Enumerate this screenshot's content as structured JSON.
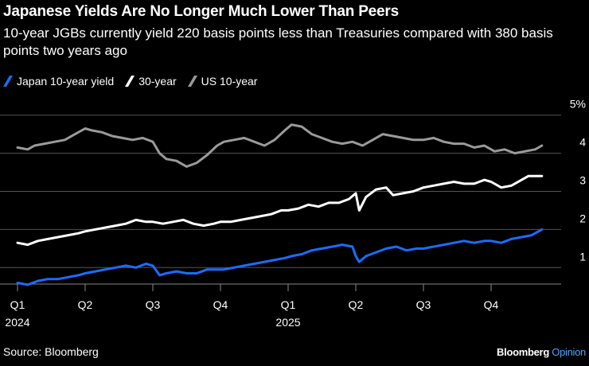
{
  "title": "Japanese Yields Are No Longer Much Lower Than Peers",
  "subtitle": "10-year JGBs currently yield 220 basis points less than Treasuries compared with 380 basis points two years ago",
  "source": "Source: Bloomberg",
  "brand": {
    "name": "Bloomberg",
    "suffix": "Opinion"
  },
  "chart_data": {
    "type": "line",
    "title": "Japanese Yields Are No Longer Much Lower Than Peers",
    "ylabel": "",
    "xlabel": "",
    "ylim": [
      0.2,
      5
    ],
    "y_ticks": [
      {
        "value": 5,
        "label": "5%"
      },
      {
        "value": 4,
        "label": "4"
      },
      {
        "value": 3,
        "label": "3"
      },
      {
        "value": 2,
        "label": "2"
      },
      {
        "value": 1,
        "label": "1"
      }
    ],
    "x_ticks": [
      {
        "value": 0,
        "label": "Q1",
        "year": "2024"
      },
      {
        "value": 1,
        "label": "Q2",
        "year": ""
      },
      {
        "value": 2,
        "label": "Q3",
        "year": ""
      },
      {
        "value": 3,
        "label": "Q4",
        "year": ""
      },
      {
        "value": 4,
        "label": "Q1",
        "year": "2025"
      },
      {
        "value": 5,
        "label": "Q2",
        "year": ""
      },
      {
        "value": 6,
        "label": "Q3",
        "year": ""
      },
      {
        "value": 7,
        "label": "Q4",
        "year": ""
      }
    ],
    "x_unit": "quarters since 2024 Q1",
    "xlim": [
      0,
      7.9
    ],
    "series": [
      {
        "name": "US 10-year",
        "color": "#9a9a9a",
        "x": [
          0,
          0.15,
          0.25,
          0.4,
          0.55,
          0.7,
          0.85,
          1.0,
          1.1,
          1.25,
          1.4,
          1.55,
          1.7,
          1.85,
          2.0,
          2.1,
          2.2,
          2.35,
          2.5,
          2.65,
          2.8,
          2.95,
          3.05,
          3.2,
          3.35,
          3.5,
          3.65,
          3.8,
          3.95,
          4.05,
          4.2,
          4.35,
          4.5,
          4.65,
          4.8,
          4.95,
          5.1,
          5.25,
          5.4,
          5.55,
          5.7,
          5.85,
          6.0,
          6.15,
          6.3,
          6.45,
          6.6,
          6.75,
          6.9,
          7.05,
          7.2,
          7.35,
          7.5,
          7.65,
          7.75
        ],
        "values": [
          4.15,
          4.1,
          4.2,
          4.25,
          4.3,
          4.35,
          4.5,
          4.65,
          4.6,
          4.55,
          4.45,
          4.4,
          4.35,
          4.4,
          4.3,
          4.0,
          3.85,
          3.8,
          3.65,
          3.75,
          3.95,
          4.2,
          4.3,
          4.35,
          4.4,
          4.3,
          4.2,
          4.35,
          4.6,
          4.75,
          4.7,
          4.5,
          4.4,
          4.3,
          4.25,
          4.3,
          4.2,
          4.35,
          4.5,
          4.45,
          4.4,
          4.35,
          4.35,
          4.4,
          4.3,
          4.25,
          4.25,
          4.15,
          4.2,
          4.05,
          4.1,
          4.0,
          4.05,
          4.1,
          4.2
        ]
      },
      {
        "name": "30-year",
        "color": "#ffffff",
        "x": [
          0,
          0.15,
          0.3,
          0.45,
          0.6,
          0.75,
          0.9,
          1.0,
          1.15,
          1.3,
          1.45,
          1.6,
          1.75,
          1.9,
          2.0,
          2.15,
          2.3,
          2.45,
          2.6,
          2.75,
          2.9,
          3.0,
          3.15,
          3.3,
          3.45,
          3.6,
          3.75,
          3.9,
          4.0,
          4.15,
          4.3,
          4.45,
          4.6,
          4.75,
          4.9,
          5.0,
          5.05,
          5.15,
          5.3,
          5.45,
          5.55,
          5.7,
          5.85,
          6.0,
          6.15,
          6.3,
          6.45,
          6.6,
          6.75,
          6.9,
          7.0,
          7.15,
          7.3,
          7.45,
          7.55,
          7.65,
          7.75
        ],
        "values": [
          1.65,
          1.6,
          1.7,
          1.75,
          1.8,
          1.85,
          1.9,
          1.95,
          2.0,
          2.05,
          2.1,
          2.15,
          2.25,
          2.2,
          2.2,
          2.15,
          2.2,
          2.25,
          2.15,
          2.1,
          2.15,
          2.2,
          2.2,
          2.25,
          2.3,
          2.35,
          2.4,
          2.5,
          2.5,
          2.55,
          2.65,
          2.6,
          2.7,
          2.7,
          2.8,
          2.95,
          2.5,
          2.85,
          3.05,
          3.1,
          2.9,
          2.95,
          3.0,
          3.1,
          3.15,
          3.2,
          3.25,
          3.2,
          3.2,
          3.3,
          3.25,
          3.1,
          3.15,
          3.3,
          3.4,
          3.4,
          3.4
        ]
      },
      {
        "name": "Japan 10-year yield",
        "color": "#1a6cff",
        "x": [
          0,
          0.15,
          0.3,
          0.45,
          0.6,
          0.75,
          0.9,
          1.0,
          1.15,
          1.3,
          1.45,
          1.6,
          1.75,
          1.9,
          2.0,
          2.1,
          2.2,
          2.35,
          2.5,
          2.65,
          2.8,
          2.95,
          3.05,
          3.2,
          3.35,
          3.5,
          3.65,
          3.8,
          3.95,
          4.05,
          4.2,
          4.35,
          4.5,
          4.65,
          4.8,
          4.95,
          5.0,
          5.05,
          5.15,
          5.3,
          5.45,
          5.6,
          5.75,
          5.9,
          6.0,
          6.15,
          6.3,
          6.45,
          6.6,
          6.75,
          6.9,
          7.0,
          7.15,
          7.3,
          7.45,
          7.6,
          7.75
        ],
        "values": [
          0.6,
          0.55,
          0.65,
          0.7,
          0.7,
          0.75,
          0.8,
          0.85,
          0.9,
          0.95,
          1.0,
          1.05,
          1.0,
          1.1,
          1.05,
          0.8,
          0.85,
          0.9,
          0.85,
          0.85,
          0.95,
          0.95,
          0.95,
          1.0,
          1.05,
          1.1,
          1.15,
          1.2,
          1.25,
          1.3,
          1.35,
          1.45,
          1.5,
          1.55,
          1.6,
          1.55,
          1.3,
          1.15,
          1.3,
          1.4,
          1.5,
          1.55,
          1.45,
          1.5,
          1.5,
          1.55,
          1.6,
          1.65,
          1.7,
          1.65,
          1.7,
          1.7,
          1.65,
          1.75,
          1.8,
          1.85,
          2.0
        ]
      }
    ]
  }
}
